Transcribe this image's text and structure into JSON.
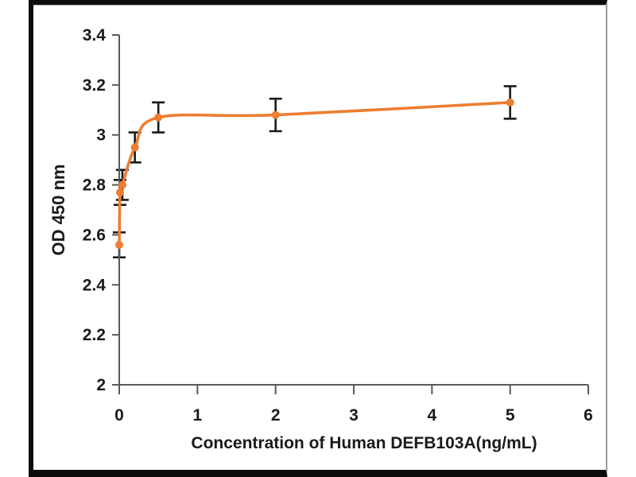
{
  "page": {
    "background_color": "#ffffff",
    "frame_color": "#0c0c0c",
    "chart_area_border_color": "#9b9b9b"
  },
  "chart_data": {
    "type": "line",
    "title": "",
    "xlabel": "Concentration of Human DEFB103A(ng/mL)",
    "ylabel": "OD 450 nm",
    "xlim": [
      0,
      6
    ],
    "ylim": [
      2,
      3.4
    ],
    "grid": false,
    "legend": false,
    "x_ticks": {
      "values": [
        0,
        1,
        2,
        3,
        4,
        5,
        6
      ],
      "labels": [
        "0",
        "1",
        "2",
        "3",
        "4",
        "5",
        "6"
      ]
    },
    "y_ticks": {
      "values": [
        2,
        2.2,
        2.4,
        2.6,
        2.8,
        3,
        3.2,
        3.4
      ],
      "labels": [
        "2",
        "2.2",
        "2.4",
        "2.6",
        "2.8",
        "3",
        "3.2",
        "3.4"
      ]
    },
    "axis_color": "#595959",
    "text_color": "#1a1a1a",
    "series": [
      {
        "color": "#ED7D31",
        "marker": "circle",
        "error_bar_color": "#1a1a1a",
        "points": [
          {
            "x": 0,
            "y": 2.56,
            "err": 0.05
          },
          {
            "x": 0.01,
            "y": 2.77,
            "err": 0.05
          },
          {
            "x": 0.04,
            "y": 2.8,
            "err": 0.06
          },
          {
            "x": 0.2,
            "y": 2.95,
            "err": 0.06
          },
          {
            "x": 0.5,
            "y": 3.07,
            "err": 0.06
          },
          {
            "x": 2,
            "y": 3.08,
            "err": 0.065
          },
          {
            "x": 5,
            "y": 3.13,
            "err": 0.065
          }
        ]
      }
    ]
  }
}
